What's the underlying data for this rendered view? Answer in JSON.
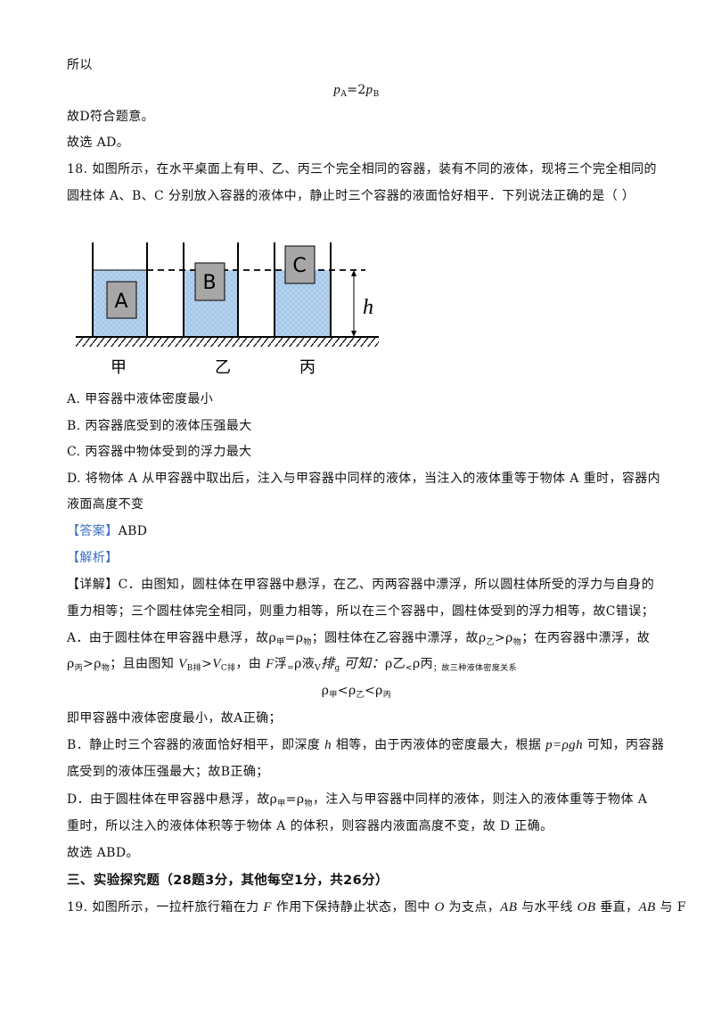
{
  "intro": {
    "line1": "所以",
    "formula": [
      "p",
      "A",
      "=2",
      "p",
      "B"
    ],
    "line2": "故D符合题意。",
    "line3": "故选 AD。"
  },
  "question": {
    "stem": [
      "18. 如图所示，在水平桌面上有甲、乙、丙三个完全相同的容器，装有不同的液体，现将三个完全相同的",
      "圆柱体 A、B、C 分别放入容器的液体中，静止时三个容器的液面恰好相平．下列说法正确的是（    ）"
    ],
    "figure": {
      "blocks": [
        "A",
        "B",
        "C"
      ],
      "height_label": "h",
      "containers": [
        "甲",
        "乙",
        "丙"
      ]
    },
    "options": [
      "A. 甲容器中液体密度最小",
      "B. 丙容器底受到的液体压强最大",
      "C. 丙容器中物体受到的浮力最大",
      "D. 将物体 A 从甲容器中取出后，注入与甲容器中同样的液体，当注入的液体重等于物体 A 重时，容器内",
      "液面高度不变"
    ]
  },
  "answer": {
    "label": "【答案】",
    "value": "ABD"
  },
  "analysis_label": "【解析】",
  "detail": [
    [
      "【详解】C．由图知，圆柱体在甲容器中悬浮，在乙、丙两容器中漂浮，所以圆柱体所受的浮力与自身的"
    ],
    [
      "重力相等；三个圆柱体完全相同，则重力相等，所以在三个容器中，圆柱体受到的浮力相等，故C错误；"
    ],
    [
      "A．由于圆柱体在甲容器中悬浮，故",
      "ρ",
      "甲",
      "=",
      "ρ",
      "物",
      "；圆柱体在乙容器中漂浮，故",
      "ρ",
      "乙",
      ">",
      "ρ",
      "物",
      "；在丙容器中漂浮，故"
    ],
    [
      "ρ",
      "丙",
      ">",
      "ρ",
      "物",
      "；且由图知 ",
      "V",
      "B排",
      ">",
      "V",
      "C排",
      "，由 ",
      "F",
      "浮",
      "=",
      "ρ",
      "液",
      "V",
      "排",
      "g",
      " 可知：",
      "ρ",
      "乙",
      "<",
      "ρ",
      "丙",
      "；故三种液体密度关系"
    ],
    [
      "ρ",
      "甲",
      "<",
      "ρ",
      "乙",
      "<",
      "ρ",
      "丙"
    ],
    [
      "即甲容器中液体密度最小，故A正确；"
    ],
    [
      "B．静止时三个容器的液面恰好相平，即深度 ",
      "h",
      " 相等，由于丙液体的密度最大，根据 ",
      "p=ρgh",
      " 可知，丙容器"
    ],
    [
      "底受到的液体压强最大；故B正确；"
    ],
    [
      "D．由于圆柱体在甲容器中悬浮，故",
      "ρ",
      "甲",
      "=",
      "ρ",
      "物",
      "，注入与甲容器中同样的液体，则注入的液体重等于物体 A"
    ],
    [
      "重时，所以注入的液体体积等于物体 A 的体积，则容器内液面高度不变，故 D 正确。"
    ],
    [
      "故选 ABD。"
    ]
  ],
  "section_title": "三、实验探究题（28题3分，其他每空1分，共26分）",
  "next_question": [
    "19. 如图所示，一拉杆旅行箱在力 ",
    "F",
    " 作用下保持静止状态，图中 ",
    "O",
    " 为支点，",
    "AB",
    " 与水平线 ",
    "OB",
    " 垂直，",
    "AB",
    " 与 ",
    "F"
  ]
}
